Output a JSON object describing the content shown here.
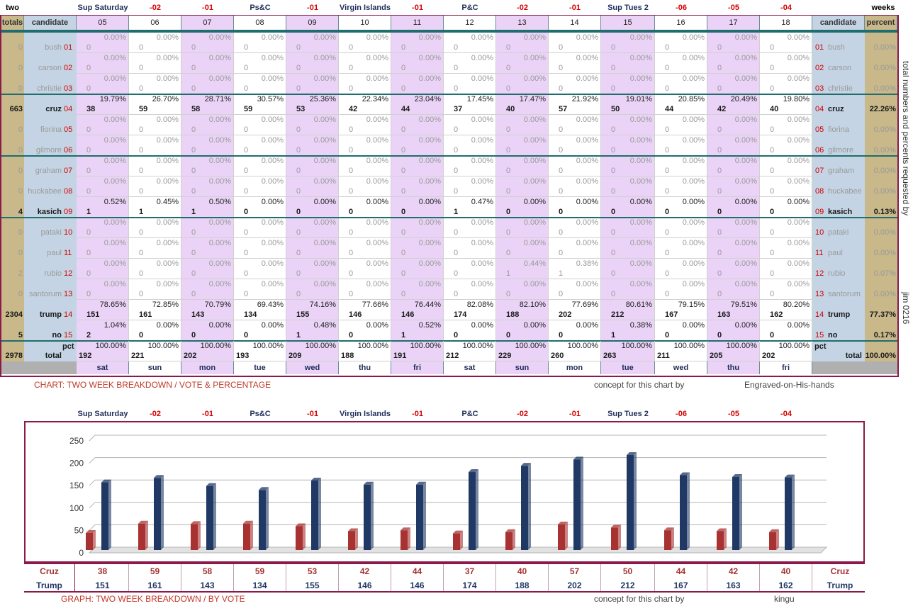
{
  "header": {
    "left_label": "two",
    "right_label": "weeks",
    "event_labels": [
      "Sup Saturday",
      "-02",
      "-01",
      "Ps&C",
      "-01",
      "Virgin Islands",
      "-01",
      "P&C",
      "-02",
      "-01",
      "Sup Tues 2",
      "-06",
      "-05",
      "-04"
    ],
    "col_totals": "totals",
    "col_candidate": "candidate",
    "day_numbers": [
      "05",
      "06",
      "07",
      "08",
      "09",
      "10",
      "11",
      "12",
      "13",
      "14",
      "15",
      "16",
      "17",
      "18"
    ],
    "col_candidate_right": "candidate",
    "col_percent": "percent"
  },
  "candidates": [
    {
      "name": "bush",
      "num": "01",
      "total": "0",
      "percent": "0.00%",
      "active": false
    },
    {
      "name": "carson",
      "num": "02",
      "total": "0",
      "percent": "0.00%",
      "active": false
    },
    {
      "name": "christie",
      "num": "03",
      "total": "0",
      "percent": "0.00%",
      "active": false
    },
    {
      "name": "cruz",
      "num": "04",
      "total": "663",
      "percent": "22.26%",
      "active": true
    },
    {
      "name": "fiorina",
      "num": "05",
      "total": "0",
      "percent": "0.00%",
      "active": false
    },
    {
      "name": "gilmore",
      "num": "06",
      "total": "0",
      "percent": "0.00%",
      "active": false
    },
    {
      "name": "graham",
      "num": "07",
      "total": "0",
      "percent": "0.00%",
      "active": false
    },
    {
      "name": "huckabee",
      "num": "08",
      "total": "0",
      "percent": "0.00%",
      "active": false
    },
    {
      "name": "kasich",
      "num": "09",
      "total": "4",
      "percent": "0.13%",
      "active": true
    },
    {
      "name": "pataki",
      "num": "10",
      "total": "0",
      "percent": "0.00%",
      "active": false
    },
    {
      "name": "paul",
      "num": "11",
      "total": "0",
      "percent": "0.00%",
      "active": false
    },
    {
      "name": "rubio",
      "num": "12",
      "total": "2",
      "percent": "0.07%",
      "active": false
    },
    {
      "name": "santorum",
      "num": "13",
      "total": "0",
      "percent": "0.00%",
      "active": false
    },
    {
      "name": "trump",
      "num": "14",
      "total": "2304",
      "percent": "77.37%",
      "active": true
    },
    {
      "name": "no",
      "num": "15",
      "total": "5",
      "percent": "0.17%",
      "active": true
    }
  ],
  "grid": {
    "bush": [
      [
        "0",
        "0.00%"
      ],
      [
        "0",
        "0.00%"
      ],
      [
        "0",
        "0.00%"
      ],
      [
        "0",
        "0.00%"
      ],
      [
        "0",
        "0.00%"
      ],
      [
        "0",
        "0.00%"
      ],
      [
        "0",
        "0.00%"
      ],
      [
        "0",
        "0.00%"
      ],
      [
        "0",
        "0.00%"
      ],
      [
        "0",
        "0.00%"
      ],
      [
        "0",
        "0.00%"
      ],
      [
        "0",
        "0.00%"
      ],
      [
        "0",
        "0.00%"
      ],
      [
        "0",
        "0.00%"
      ]
    ],
    "carson": [
      [
        "0",
        "0.00%"
      ],
      [
        "0",
        "0.00%"
      ],
      [
        "0",
        "0.00%"
      ],
      [
        "0",
        "0.00%"
      ],
      [
        "0",
        "0.00%"
      ],
      [
        "0",
        "0.00%"
      ],
      [
        "0",
        "0.00%"
      ],
      [
        "0",
        "0.00%"
      ],
      [
        "0",
        "0.00%"
      ],
      [
        "0",
        "0.00%"
      ],
      [
        "0",
        "0.00%"
      ],
      [
        "0",
        "0.00%"
      ],
      [
        "0",
        "0.00%"
      ],
      [
        "0",
        "0.00%"
      ]
    ],
    "christie": [
      [
        "0",
        "0.00%"
      ],
      [
        "0",
        "0.00%"
      ],
      [
        "0",
        "0.00%"
      ],
      [
        "0",
        "0.00%"
      ],
      [
        "0",
        "0.00%"
      ],
      [
        "0",
        "0.00%"
      ],
      [
        "0",
        "0.00%"
      ],
      [
        "0",
        "0.00%"
      ],
      [
        "0",
        "0.00%"
      ],
      [
        "0",
        "0.00%"
      ],
      [
        "0",
        "0.00%"
      ],
      [
        "0",
        "0.00%"
      ],
      [
        "0",
        "0.00%"
      ],
      [
        "0",
        "0.00%"
      ]
    ],
    "cruz": [
      [
        "38",
        "19.79%"
      ],
      [
        "59",
        "26.70%"
      ],
      [
        "58",
        "28.71%"
      ],
      [
        "59",
        "30.57%"
      ],
      [
        "53",
        "25.36%"
      ],
      [
        "42",
        "22.34%"
      ],
      [
        "44",
        "23.04%"
      ],
      [
        "37",
        "17.45%"
      ],
      [
        "40",
        "17.47%"
      ],
      [
        "57",
        "21.92%"
      ],
      [
        "50",
        "19.01%"
      ],
      [
        "44",
        "20.85%"
      ],
      [
        "42",
        "20.49%"
      ],
      [
        "40",
        "19.80%"
      ]
    ],
    "fiorina": [
      [
        "0",
        "0.00%"
      ],
      [
        "0",
        "0.00%"
      ],
      [
        "0",
        "0.00%"
      ],
      [
        "0",
        "0.00%"
      ],
      [
        "0",
        "0.00%"
      ],
      [
        "0",
        "0.00%"
      ],
      [
        "0",
        "0.00%"
      ],
      [
        "0",
        "0.00%"
      ],
      [
        "0",
        "0.00%"
      ],
      [
        "0",
        "0.00%"
      ],
      [
        "0",
        "0.00%"
      ],
      [
        "0",
        "0.00%"
      ],
      [
        "0",
        "0.00%"
      ],
      [
        "0",
        "0.00%"
      ]
    ],
    "gilmore": [
      [
        "0",
        "0.00%"
      ],
      [
        "0",
        "0.00%"
      ],
      [
        "0",
        "0.00%"
      ],
      [
        "0",
        "0.00%"
      ],
      [
        "0",
        "0.00%"
      ],
      [
        "0",
        "0.00%"
      ],
      [
        "0",
        "0.00%"
      ],
      [
        "0",
        "0.00%"
      ],
      [
        "0",
        "0.00%"
      ],
      [
        "0",
        "0.00%"
      ],
      [
        "0",
        "0.00%"
      ],
      [
        "0",
        "0.00%"
      ],
      [
        "0",
        "0.00%"
      ],
      [
        "0",
        "0.00%"
      ]
    ],
    "graham": [
      [
        "0",
        "0.00%"
      ],
      [
        "0",
        "0.00%"
      ],
      [
        "0",
        "0.00%"
      ],
      [
        "0",
        "0.00%"
      ],
      [
        "0",
        "0.00%"
      ],
      [
        "0",
        "0.00%"
      ],
      [
        "0",
        "0.00%"
      ],
      [
        "0",
        "0.00%"
      ],
      [
        "0",
        "0.00%"
      ],
      [
        "0",
        "0.00%"
      ],
      [
        "0",
        "0.00%"
      ],
      [
        "0",
        "0.00%"
      ],
      [
        "0",
        "0.00%"
      ],
      [
        "0",
        "0.00%"
      ]
    ],
    "huckabee": [
      [
        "0",
        "0.00%"
      ],
      [
        "0",
        "0.00%"
      ],
      [
        "0",
        "0.00%"
      ],
      [
        "0",
        "0.00%"
      ],
      [
        "0",
        "0.00%"
      ],
      [
        "0",
        "0.00%"
      ],
      [
        "0",
        "0.00%"
      ],
      [
        "0",
        "0.00%"
      ],
      [
        "0",
        "0.00%"
      ],
      [
        "0",
        "0.00%"
      ],
      [
        "0",
        "0.00%"
      ],
      [
        "0",
        "0.00%"
      ],
      [
        "0",
        "0.00%"
      ],
      [
        "0",
        "0.00%"
      ]
    ],
    "kasich": [
      [
        "1",
        "0.52%"
      ],
      [
        "1",
        "0.45%"
      ],
      [
        "1",
        "0.50%"
      ],
      [
        "0",
        "0.00%"
      ],
      [
        "0",
        "0.00%"
      ],
      [
        "0",
        "0.00%"
      ],
      [
        "0",
        "0.00%"
      ],
      [
        "1",
        "0.47%"
      ],
      [
        "0",
        "0.00%"
      ],
      [
        "0",
        "0.00%"
      ],
      [
        "0",
        "0.00%"
      ],
      [
        "0",
        "0.00%"
      ],
      [
        "0",
        "0.00%"
      ],
      [
        "0",
        "0.00%"
      ]
    ],
    "pataki": [
      [
        "0",
        "0.00%"
      ],
      [
        "0",
        "0.00%"
      ],
      [
        "0",
        "0.00%"
      ],
      [
        "0",
        "0.00%"
      ],
      [
        "0",
        "0.00%"
      ],
      [
        "0",
        "0.00%"
      ],
      [
        "0",
        "0.00%"
      ],
      [
        "0",
        "0.00%"
      ],
      [
        "0",
        "0.00%"
      ],
      [
        "0",
        "0.00%"
      ],
      [
        "0",
        "0.00%"
      ],
      [
        "0",
        "0.00%"
      ],
      [
        "0",
        "0.00%"
      ],
      [
        "0",
        "0.00%"
      ]
    ],
    "paul": [
      [
        "0",
        "0.00%"
      ],
      [
        "0",
        "0.00%"
      ],
      [
        "0",
        "0.00%"
      ],
      [
        "0",
        "0.00%"
      ],
      [
        "0",
        "0.00%"
      ],
      [
        "0",
        "0.00%"
      ],
      [
        "0",
        "0.00%"
      ],
      [
        "0",
        "0.00%"
      ],
      [
        "0",
        "0.00%"
      ],
      [
        "0",
        "0.00%"
      ],
      [
        "0",
        "0.00%"
      ],
      [
        "0",
        "0.00%"
      ],
      [
        "0",
        "0.00%"
      ],
      [
        "0",
        "0.00%"
      ]
    ],
    "rubio": [
      [
        "0",
        "0.00%"
      ],
      [
        "0",
        "0.00%"
      ],
      [
        "0",
        "0.00%"
      ],
      [
        "0",
        "0.00%"
      ],
      [
        "0",
        "0.00%"
      ],
      [
        "0",
        "0.00%"
      ],
      [
        "0",
        "0.00%"
      ],
      [
        "0",
        "0.00%"
      ],
      [
        "1",
        "0.44%"
      ],
      [
        "1",
        "0.38%"
      ],
      [
        "0",
        "0.00%"
      ],
      [
        "0",
        "0.00%"
      ],
      [
        "0",
        "0.00%"
      ],
      [
        "0",
        "0.00%"
      ]
    ],
    "santorum": [
      [
        "0",
        "0.00%"
      ],
      [
        "0",
        "0.00%"
      ],
      [
        "0",
        "0.00%"
      ],
      [
        "0",
        "0.00%"
      ],
      [
        "0",
        "0.00%"
      ],
      [
        "0",
        "0.00%"
      ],
      [
        "0",
        "0.00%"
      ],
      [
        "0",
        "0.00%"
      ],
      [
        "0",
        "0.00%"
      ],
      [
        "0",
        "0.00%"
      ],
      [
        "0",
        "0.00%"
      ],
      [
        "0",
        "0.00%"
      ],
      [
        "0",
        "0.00%"
      ],
      [
        "0",
        "0.00%"
      ]
    ],
    "trump": [
      [
        "151",
        "78.65%"
      ],
      [
        "161",
        "72.85%"
      ],
      [
        "143",
        "70.79%"
      ],
      [
        "134",
        "69.43%"
      ],
      [
        "155",
        "74.16%"
      ],
      [
        "146",
        "77.66%"
      ],
      [
        "146",
        "76.44%"
      ],
      [
        "174",
        "82.08%"
      ],
      [
        "188",
        "82.10%"
      ],
      [
        "202",
        "77.69%"
      ],
      [
        "212",
        "80.61%"
      ],
      [
        "167",
        "79.15%"
      ],
      [
        "163",
        "79.51%"
      ],
      [
        "162",
        "80.20%"
      ]
    ],
    "no": [
      [
        "2",
        "1.04%"
      ],
      [
        "0",
        "0.00%"
      ],
      [
        "0",
        "0.00%"
      ],
      [
        "0",
        "0.00%"
      ],
      [
        "1",
        "0.48%"
      ],
      [
        "0",
        "0.00%"
      ],
      [
        "1",
        "0.52%"
      ],
      [
        "0",
        "0.00%"
      ],
      [
        "0",
        "0.00%"
      ],
      [
        "0",
        "0.00%"
      ],
      [
        "1",
        "0.38%"
      ],
      [
        "0",
        "0.00%"
      ],
      [
        "0",
        "0.00%"
      ],
      [
        "0",
        "0.00%"
      ]
    ]
  },
  "totals_row": {
    "grand_total": "2978",
    "label": "total",
    "pct_label": "pct",
    "cells": [
      [
        "192",
        "100.00%"
      ],
      [
        "221",
        "100.00%"
      ],
      [
        "202",
        "100.00%"
      ],
      [
        "193",
        "100.00%"
      ],
      [
        "209",
        "100.00%"
      ],
      [
        "188",
        "100.00%"
      ],
      [
        "191",
        "100.00%"
      ],
      [
        "212",
        "100.00%"
      ],
      [
        "229",
        "100.00%"
      ],
      [
        "260",
        "100.00%"
      ],
      [
        "263",
        "100.00%"
      ],
      [
        "211",
        "100.00%"
      ],
      [
        "205",
        "100.00%"
      ],
      [
        "202",
        "100.00%"
      ]
    ],
    "right_pct_label": "pct",
    "right_total_label": "total",
    "right_percent": "100.00%"
  },
  "weekdays": [
    "sat",
    "sun",
    "mon",
    "tue",
    "wed",
    "thu",
    "fri",
    "sat",
    "sun",
    "mon",
    "tue",
    "wed",
    "thu",
    "fri"
  ],
  "side_note": "total numbers and percents requested by",
  "side_note2": "jim 0216",
  "table_caption": "CHART: TWO WEEK BREAKDOWN / VOTE & PERCENTAGE",
  "table_credit_label": "concept for this chart by",
  "table_credit_name": "Engraved-on-His-hands",
  "graph_caption": "GRAPH: TWO WEEK BREAKDOWN / BY VOTE",
  "graph_credit_label": "concept for this chart by",
  "graph_credit_name": "kingu",
  "chart_data": {
    "type": "bar",
    "categories": [
      "Sup Saturday",
      "-02",
      "-01",
      "Ps&C",
      "-01",
      "Virgin Islands",
      "-01",
      "P&C",
      "-02",
      "-01",
      "Sup Tues 2",
      "-06",
      "-05",
      "-04"
    ],
    "series": [
      {
        "name": "Cruz",
        "values": [
          38,
          59,
          58,
          59,
          53,
          42,
          44,
          37,
          40,
          57,
          50,
          44,
          42,
          40
        ],
        "color": "#a83232"
      },
      {
        "name": "Trump",
        "values": [
          151,
          161,
          143,
          134,
          155,
          146,
          146,
          174,
          188,
          202,
          212,
          167,
          163,
          162
        ],
        "color": "#1f3864"
      }
    ],
    "ylim": [
      0,
      250
    ],
    "yticks": [
      "0",
      "50",
      "100",
      "150",
      "200",
      "250"
    ],
    "grid": true,
    "legend": "table below chart"
  }
}
